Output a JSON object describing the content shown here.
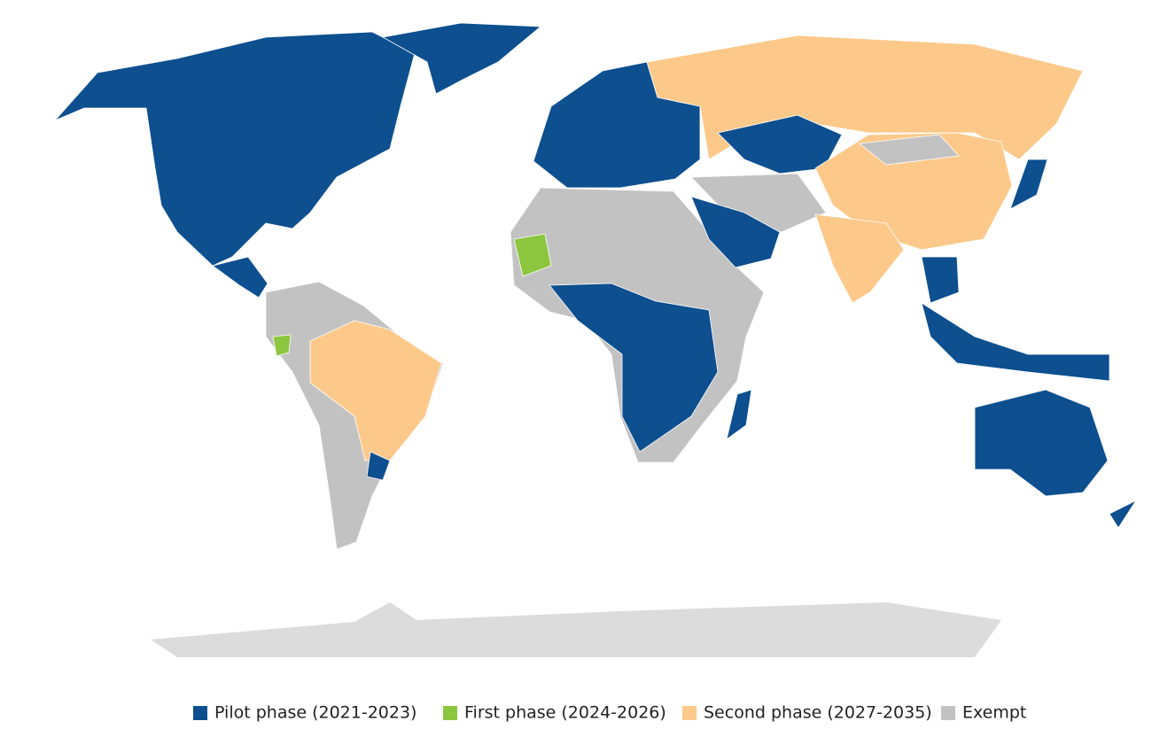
{
  "legend": {
    "items": [
      {
        "name": "Pilot phase (2021-2023)",
        "color": "#0d4f8f"
      },
      {
        "name": "First phase (2024-2026)",
        "color": "#8cc63f"
      },
      {
        "name": "Second phase (2027-2035)",
        "color": "#fdc98a"
      },
      {
        "name": "Exempt",
        "color": "#c2c2c2"
      }
    ]
  }
}
